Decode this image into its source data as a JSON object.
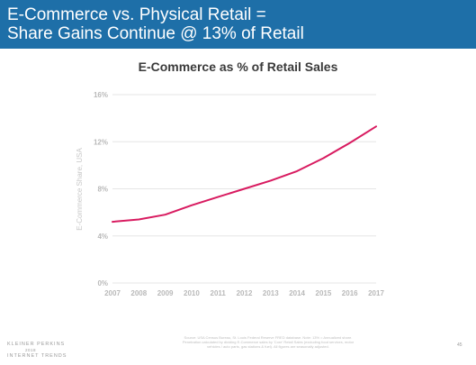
{
  "header": {
    "title_line1": "E-Commerce vs. Physical Retail =",
    "title_line2": "Share Gains Continue @ 13% of Retail"
  },
  "chart_data": {
    "type": "line",
    "title": "E-Commerce as % of Retail Sales",
    "ylabel": "E-Commerce Share, USA",
    "xlabel": "",
    "categories": [
      "2007",
      "2008",
      "2009",
      "2010",
      "2011",
      "2012",
      "2013",
      "2014",
      "2015",
      "2016",
      "2017"
    ],
    "series": [
      {
        "values": [
          5.2,
          5.4,
          5.8,
          6.6,
          7.3,
          8.0,
          8.7,
          9.5,
          10.6,
          11.9,
          13.3
        ]
      }
    ],
    "ylim": [
      0,
      16
    ],
    "yticks": [
      0,
      4,
      8,
      12,
      16
    ],
    "ytick_labels": [
      "0%",
      "4%",
      "8%",
      "12%",
      "16%"
    ],
    "grid": true,
    "line_color": "#d81b60",
    "grid_color": "#e6e6e6"
  },
  "footer": {
    "logo_line1": "KLEINER PERKINS",
    "logo_line2": "2018",
    "logo_line3": "INTERNET TRENDS",
    "source_note": "Source: USA Census Bureau, St. Louis Federal Reserve FRED database. Note: 13% = Annualized share. Penetration calculated by dividing E-Commerce sales by 'Core' Retail Sales (excluding food services, motor vehicles / auto parts, gas stations & fuel). All figures are seasonally adjusted.",
    "page_number": "45"
  }
}
